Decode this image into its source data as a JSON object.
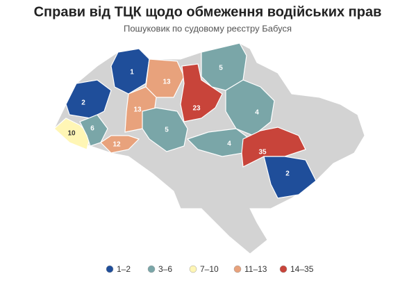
{
  "map": {
    "title": "Справи від ТЦК щодо обмеження водійських прав",
    "subtitle": "Пошуковик по судовому реєстру Бабуся",
    "regions": [
      {
        "value": 1,
        "color": "#1f4e9a"
      },
      {
        "value": 2,
        "color": "#1f4e9a"
      },
      {
        "value": 13,
        "color": "#e8a27c"
      },
      {
        "value": 13,
        "color": "#e8a27c"
      },
      {
        "value": 10,
        "color": "#fff6b5"
      },
      {
        "value": 6,
        "color": "#7aa6a8"
      },
      {
        "value": 12,
        "color": "#e8a27c"
      },
      {
        "value": 5,
        "color": "#7aa6a8"
      },
      {
        "value": 23,
        "color": "#c8443a"
      },
      {
        "value": 5,
        "color": "#7aa6a8"
      },
      {
        "value": 4,
        "color": "#7aa6a8"
      },
      {
        "value": 4,
        "color": "#7aa6a8"
      },
      {
        "value": 35,
        "color": "#c8443a"
      },
      {
        "value": 2,
        "color": "#1f4e9a"
      }
    ],
    "legend": [
      {
        "label": "1–2",
        "color": "#1f4e9a"
      },
      {
        "label": "3–6",
        "color": "#7aa6a8"
      },
      {
        "label": "7–10",
        "color": "#fff6b5"
      },
      {
        "label": "11–13",
        "color": "#e8a27c"
      },
      {
        "label": "14–35",
        "color": "#c8443a"
      }
    ]
  }
}
